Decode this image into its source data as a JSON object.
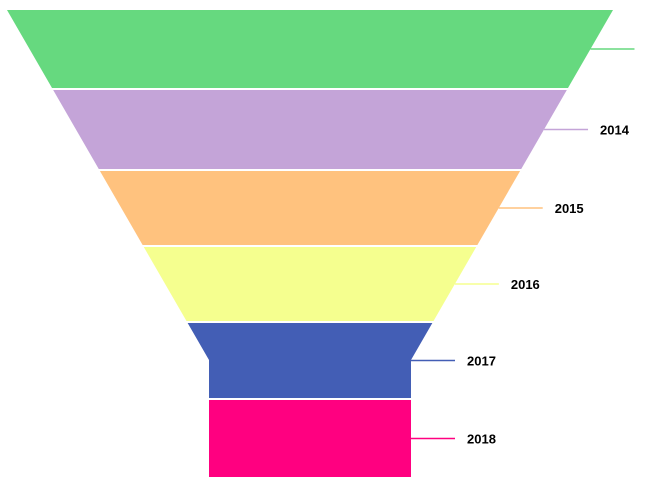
{
  "chart_data": {
    "type": "funnel",
    "title": "",
    "segments": [
      {
        "label": "",
        "color": "#66d97f"
      },
      {
        "label": "2014",
        "color": "#c4a4d8"
      },
      {
        "label": "2015",
        "color": "#ffc27e"
      },
      {
        "label": "2016",
        "color": "#f5ff8f"
      },
      {
        "label": "2017",
        "color": "#435eb5"
      },
      {
        "label": "2018",
        "color": "#ff0080"
      }
    ]
  }
}
